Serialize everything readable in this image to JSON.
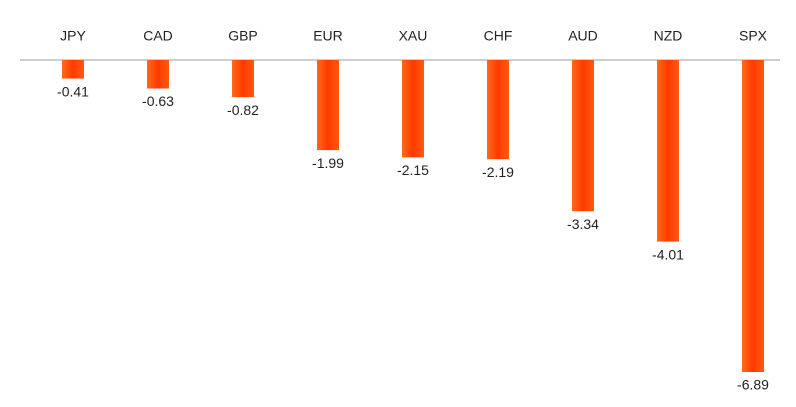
{
  "chart_data": {
    "type": "bar",
    "categories": [
      "JPY",
      "CAD",
      "GBP",
      "EUR",
      "XAU",
      "CHF",
      "AUD",
      "NZD",
      "SPX"
    ],
    "values": [
      -0.41,
      -0.63,
      -0.82,
      -1.99,
      -2.15,
      -2.19,
      -3.34,
      -4.01,
      -6.89
    ],
    "color": "#ff4500"
  }
}
